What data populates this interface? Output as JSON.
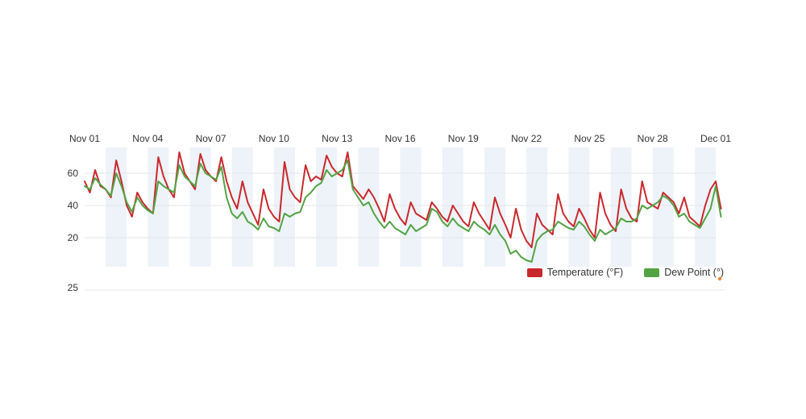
{
  "chart_data": {
    "type": "line",
    "title": "",
    "x_labels": [
      "Nov 01",
      "Nov 04",
      "Nov 07",
      "Nov 10",
      "Nov 13",
      "Nov 16",
      "Nov 19",
      "Nov 22",
      "Nov 25",
      "Nov 28",
      "Dec 01"
    ],
    "y_ticks": [
      20,
      40,
      60
    ],
    "ylim": [
      0,
      78
    ],
    "points_per_day": 4,
    "grid_on": true,
    "band_color": "#edf3f9",
    "grid_color": "#e6e6e6",
    "axis_text_color": "#333333",
    "legend_position": "bottom-right",
    "series": [
      {
        "name": "Temperature (°F)",
        "color": "#c9282d",
        "values": [
          55,
          48,
          62,
          52,
          50,
          45,
          68,
          55,
          40,
          33,
          48,
          42,
          38,
          35,
          70,
          58,
          50,
          45,
          73,
          60,
          55,
          50,
          72,
          62,
          58,
          55,
          70,
          55,
          45,
          38,
          55,
          42,
          35,
          28,
          50,
          38,
          33,
          30,
          67,
          50,
          45,
          42,
          65,
          55,
          58,
          56,
          71,
          64,
          60,
          58,
          73,
          52,
          48,
          44,
          50,
          45,
          38,
          30,
          47,
          38,
          32,
          28,
          42,
          35,
          33,
          31,
          42,
          38,
          33,
          30,
          40,
          35,
          30,
          27,
          42,
          35,
          30,
          25,
          45,
          35,
          28,
          20,
          38,
          25,
          18,
          14,
          35,
          28,
          25,
          22,
          47,
          35,
          30,
          27,
          38,
          32,
          25,
          20,
          48,
          35,
          28,
          24,
          50,
          38,
          32,
          30,
          55,
          42,
          40,
          38,
          48,
          45,
          42,
          35,
          45,
          33,
          30,
          27,
          40,
          50,
          55,
          38
        ]
      },
      {
        "name": "Dew Point (°)",
        "color": "#53a345",
        "values": [
          52,
          50,
          57,
          53,
          50,
          46,
          60,
          52,
          42,
          36,
          45,
          40,
          37,
          35,
          55,
          52,
          50,
          48,
          65,
          58,
          55,
          52,
          66,
          60,
          58,
          56,
          64,
          45,
          35,
          32,
          36,
          30,
          28,
          25,
          32,
          27,
          26,
          24,
          35,
          33,
          35,
          36,
          45,
          48,
          52,
          54,
          62,
          58,
          60,
          62,
          68,
          50,
          45,
          40,
          42,
          35,
          30,
          26,
          30,
          26,
          24,
          22,
          28,
          24,
          26,
          28,
          38,
          36,
          30,
          27,
          32,
          28,
          26,
          24,
          30,
          27,
          25,
          22,
          28,
          22,
          18,
          10,
          12,
          8,
          6,
          5,
          18,
          22,
          24,
          25,
          30,
          28,
          26,
          25,
          30,
          27,
          22,
          18,
          25,
          22,
          24,
          26,
          32,
          30,
          30,
          32,
          40,
          38,
          40,
          42,
          46,
          44,
          40,
          33,
          35,
          30,
          28,
          26,
          32,
          38,
          52,
          33
        ]
      }
    ]
  },
  "next_chart": {
    "first_y_tick": "25",
    "marker_color": "#f0883a"
  }
}
